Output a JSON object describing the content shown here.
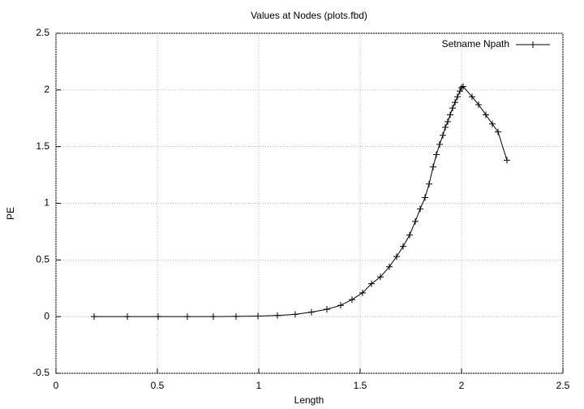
{
  "chart_data": {
    "type": "line",
    "title": "Values at Nodes (plots.fbd)",
    "x_label": "Length",
    "y_label": "PE",
    "series": [
      {
        "name": "Setname Npath",
        "color": "#000000",
        "x": [
          0.188,
          0.352,
          0.504,
          0.648,
          0.776,
          0.888,
          0.996,
          1.092,
          1.18,
          1.26,
          1.336,
          1.404,
          1.46,
          1.512,
          1.556,
          1.6,
          1.644,
          1.68,
          1.712,
          1.744,
          1.772,
          1.796,
          1.82,
          1.84,
          1.86,
          1.876,
          1.892,
          1.908,
          1.92,
          1.932,
          1.944,
          1.956,
          1.968,
          1.98,
          1.992,
          2.0,
          2.008,
          2.052,
          2.084,
          2.12,
          2.152,
          2.18,
          2.224
        ],
        "values": [
          0,
          0,
          0,
          0,
          0,
          0.002,
          0.005,
          0.01,
          0.02,
          0.04,
          0.065,
          0.1,
          0.15,
          0.21,
          0.29,
          0.35,
          0.44,
          0.53,
          0.62,
          0.72,
          0.84,
          0.95,
          1.05,
          1.17,
          1.32,
          1.43,
          1.52,
          1.6,
          1.67,
          1.72,
          1.78,
          1.84,
          1.89,
          1.94,
          1.99,
          2.02,
          2.03,
          1.94,
          1.87,
          1.78,
          1.7,
          1.63,
          1.38
        ]
      }
    ],
    "xlim": [
      0,
      2.5
    ],
    "xticks": [
      0,
      0.5,
      1,
      1.5,
      2,
      2.5
    ],
    "ylim": [
      -0.5,
      2.5
    ],
    "yticks": [
      -0.5,
      0,
      0.5,
      1,
      1.5,
      2,
      2.5
    ],
    "grid": true,
    "legend": "top-right"
  }
}
